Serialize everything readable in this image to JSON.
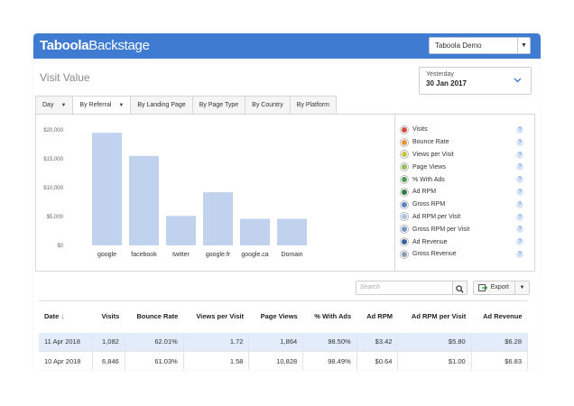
{
  "header": {
    "logo_bold": "Taboola",
    "logo_light": "Backstage",
    "account_label": "Taboola Demo",
    "accent_color": "#3f7bd0"
  },
  "page": {
    "title": "Visit Value"
  },
  "date_picker": {
    "range_label": "Yesterday",
    "date": "30 Jan 2017"
  },
  "tabs": [
    {
      "label": "Day",
      "has_caret": true
    },
    {
      "label": "By Referral",
      "has_caret": true,
      "active": true
    },
    {
      "label": "By Landing Page"
    },
    {
      "label": "By Page Type"
    },
    {
      "label": "By Country"
    },
    {
      "label": "By Platform"
    }
  ],
  "chart_data": {
    "type": "bar",
    "categories": [
      "google",
      "facebook",
      "twitter",
      "google.fr",
      "google.ca",
      "Domain"
    ],
    "values": [
      19500,
      15500,
      5100,
      9200,
      4600,
      4600
    ],
    "ylim": [
      0,
      20000
    ],
    "yticks": [
      0,
      5000,
      10000,
      15000,
      20000
    ],
    "ytick_labels": [
      "$0",
      "$5,000",
      "$10,000",
      "$15,000",
      "$20,000"
    ],
    "bar_color": "#c0d2ed",
    "grid": false
  },
  "legend": [
    {
      "label": "Visits",
      "color": "#d24b3c"
    },
    {
      "label": "Bounce Rate",
      "color": "#e8933a"
    },
    {
      "label": "Views per Visit",
      "color": "#c9c24a"
    },
    {
      "label": "Page Views",
      "color": "#8fc15a"
    },
    {
      "label": "% With Ads",
      "color": "#4f9a57"
    },
    {
      "label": "Ad RPM",
      "color": "#2f7a48"
    },
    {
      "label": "Gross RPM",
      "color": "#5a82c4"
    },
    {
      "label": "Ad RPM per Visit",
      "color": "#a9c2e6"
    },
    {
      "label": "Gross RPM per Visit",
      "color": "#7d96c8"
    },
    {
      "label": "Ad Revenue",
      "color": "#3a5f9e"
    },
    {
      "label": "Gross Revenue",
      "color": "#8b98b4"
    }
  ],
  "legend_help_glyph": "?",
  "toolbar": {
    "search_placeholder": "Search",
    "export_label": "Export"
  },
  "table": {
    "columns": [
      "Date",
      "Visits",
      "Bounce Rate",
      "Views per Visit",
      "Page Views",
      "% With Ads",
      "Ad RPM",
      "Ad RPM per Visit",
      "Ad Revenue"
    ],
    "rows": [
      [
        "11 Apr 2018",
        "1,082",
        "62.01%",
        "1.72",
        "1,864",
        "98.50%",
        "$3.42",
        "$5.80",
        "$6.28"
      ],
      [
        "10 Apr 2018",
        "6,846",
        "61.03%",
        "1.58",
        "10,828",
        "98.49%",
        "$0.64",
        "$1.00",
        "$6.83"
      ]
    ]
  }
}
